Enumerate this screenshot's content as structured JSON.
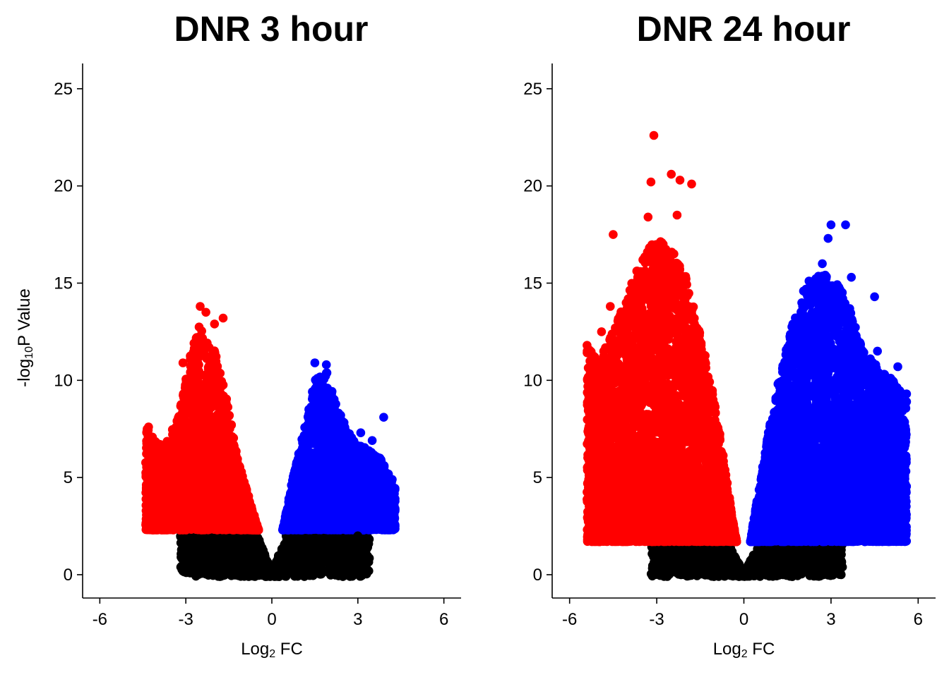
{
  "chart_data": [
    {
      "type": "scatter",
      "title": "DNR 3 hour",
      "xlabel": "Log2 FC",
      "xlabel_parts": {
        "base": "Log",
        "sub": "2",
        "rest": " FC"
      },
      "ylabel": "-log10P Value",
      "ylabel_parts": {
        "pre": "-log",
        "sub": "10",
        "rest": "P Value"
      },
      "xlim": [
        -6.6,
        6.6
      ],
      "ylim": [
        -1.2,
        26.3
      ],
      "xticks": [
        -6,
        -3,
        0,
        3,
        6
      ],
      "xtick_labels": [
        "-6",
        "-3",
        "0",
        "3",
        "6"
      ],
      "yticks": [
        0,
        5,
        10,
        15,
        20,
        25
      ],
      "ytick_labels": [
        "0",
        "5",
        "10",
        "15",
        "20",
        "25"
      ],
      "grid": false,
      "legend": "none",
      "significance_threshold": 2.3,
      "colors": {
        "down": "#ff0000",
        "up": "#0000ff",
        "ns": "#000000"
      },
      "envelope": {
        "down_x": [
          -0.15,
          -0.4,
          -0.8,
          -1.2,
          -1.5,
          -1.8,
          -2.1,
          -2.5,
          -2.9,
          -3.3,
          -3.8,
          -4.4
        ],
        "down_y": [
          0.4,
          2.0,
          4.0,
          6.0,
          8.5,
          10.5,
          12.0,
          13.0,
          11.0,
          8.0,
          6.5,
          7.6
        ],
        "up_x": [
          0.15,
          0.4,
          0.8,
          1.2,
          1.5,
          1.9,
          2.3,
          2.8,
          3.3,
          3.8,
          4.3
        ],
        "up_y": [
          0.4,
          2.5,
          5.5,
          8.0,
          10.0,
          10.5,
          8.5,
          7.0,
          6.5,
          6.0,
          4.5
        ],
        "down_xmin": -4.4,
        "up_xmax": 4.3,
        "count_down": 2600,
        "count_up": 2800,
        "count_ns": 1500
      },
      "outliers": [
        {
          "x": -4.3,
          "y": 7.6
        },
        {
          "x": -3.9,
          "y": 6.7
        },
        {
          "x": -3.6,
          "y": 6.3
        },
        {
          "x": -3.3,
          "y": 6.5
        },
        {
          "x": -3.1,
          "y": 10.9
        },
        {
          "x": -2.5,
          "y": 13.8
        },
        {
          "x": -2.3,
          "y": 13.5
        },
        {
          "x": -1.7,
          "y": 13.2
        },
        {
          "x": -2.0,
          "y": 12.9
        },
        {
          "x": 1.5,
          "y": 10.9
        },
        {
          "x": 1.9,
          "y": 10.8
        },
        {
          "x": 3.9,
          "y": 8.1
        },
        {
          "x": 4.2,
          "y": 4.9
        },
        {
          "x": 4.1,
          "y": 3.4
        },
        {
          "x": 3.9,
          "y": 3.1
        },
        {
          "x": 3.1,
          "y": 7.3
        },
        {
          "x": 3.0,
          "y": 2.0
        },
        {
          "x": 2.4,
          "y": 8.2
        },
        {
          "x": 3.5,
          "y": 6.9
        }
      ]
    },
    {
      "type": "scatter",
      "title": "DNR 24 hour",
      "xlabel": "Log2 FC",
      "xlabel_parts": {
        "base": "Log",
        "sub": "2",
        "rest": " FC"
      },
      "ylabel": "",
      "xlim": [
        -6.6,
        6.6
      ],
      "ylim": [
        -1.2,
        26.3
      ],
      "xticks": [
        -6,
        -3,
        0,
        3,
        6
      ],
      "xtick_labels": [
        "-6",
        "-3",
        "0",
        "3",
        "6"
      ],
      "yticks": [
        0,
        5,
        10,
        15,
        20,
        25
      ],
      "ytick_labels": [
        "0",
        "5",
        "10",
        "15",
        "20",
        "25"
      ],
      "grid": false,
      "legend": "none",
      "significance_threshold": 1.7,
      "colors": {
        "down": "#ff0000",
        "up": "#0000ff",
        "ns": "#000000"
      },
      "envelope": {
        "down_x": [
          -0.1,
          -0.4,
          -0.8,
          -1.2,
          -1.6,
          -2.0,
          -2.4,
          -2.8,
          -3.2,
          -3.6,
          -4.0,
          -4.5,
          -5.0,
          -5.4
        ],
        "down_y": [
          0.4,
          3.0,
          7.0,
          10.5,
          13.0,
          15.5,
          16.5,
          17.5,
          17.0,
          16.0,
          14.5,
          12.5,
          11.0,
          11.8
        ],
        "up_x": [
          0.1,
          0.4,
          0.8,
          1.2,
          1.6,
          2.0,
          2.4,
          2.8,
          3.2,
          3.6,
          4.0,
          4.4,
          4.8,
          5.2,
          5.6
        ],
        "up_y": [
          0.4,
          3.5,
          7.0,
          10.0,
          12.5,
          14.5,
          15.5,
          15.5,
          15.0,
          14.0,
          12.0,
          11.0,
          10.5,
          10.0,
          9.0
        ],
        "down_xmin": -5.4,
        "up_xmax": 5.6,
        "count_down": 5200,
        "count_up": 5200,
        "count_ns": 1500
      },
      "outliers": [
        {
          "x": -3.1,
          "y": 22.6
        },
        {
          "x": -2.5,
          "y": 20.6
        },
        {
          "x": -2.2,
          "y": 20.3
        },
        {
          "x": -1.8,
          "y": 20.1
        },
        {
          "x": -3.2,
          "y": 20.2
        },
        {
          "x": -2.3,
          "y": 18.5
        },
        {
          "x": -3.3,
          "y": 18.4
        },
        {
          "x": -4.5,
          "y": 17.5
        },
        {
          "x": -5.4,
          "y": 11.8
        },
        {
          "x": -5.3,
          "y": 10.0
        },
        {
          "x": -5.0,
          "y": 9.0
        },
        {
          "x": -5.2,
          "y": 7.0
        },
        {
          "x": -4.9,
          "y": 12.5
        },
        {
          "x": -4.6,
          "y": 13.8
        },
        {
          "x": -4.4,
          "y": 4.4
        },
        {
          "x": -3.0,
          "y": 1.9
        },
        {
          "x": 3.0,
          "y": 18.0
        },
        {
          "x": 3.5,
          "y": 18.0
        },
        {
          "x": 2.9,
          "y": 17.3
        },
        {
          "x": 2.7,
          "y": 16.0
        },
        {
          "x": 4.5,
          "y": 14.3
        },
        {
          "x": 4.6,
          "y": 11.5
        },
        {
          "x": 5.3,
          "y": 10.7
        },
        {
          "x": 5.6,
          "y": 9.3
        },
        {
          "x": 5.6,
          "y": 8.9
        },
        {
          "x": 5.1,
          "y": 9.8
        },
        {
          "x": 4.7,
          "y": 10.3
        },
        {
          "x": 3.7,
          "y": 15.3
        },
        {
          "x": 4.0,
          "y": 11.0
        },
        {
          "x": 4.8,
          "y": 8.0
        },
        {
          "x": 4.4,
          "y": 3.8
        },
        {
          "x": 3.4,
          "y": 2.2
        }
      ]
    }
  ]
}
